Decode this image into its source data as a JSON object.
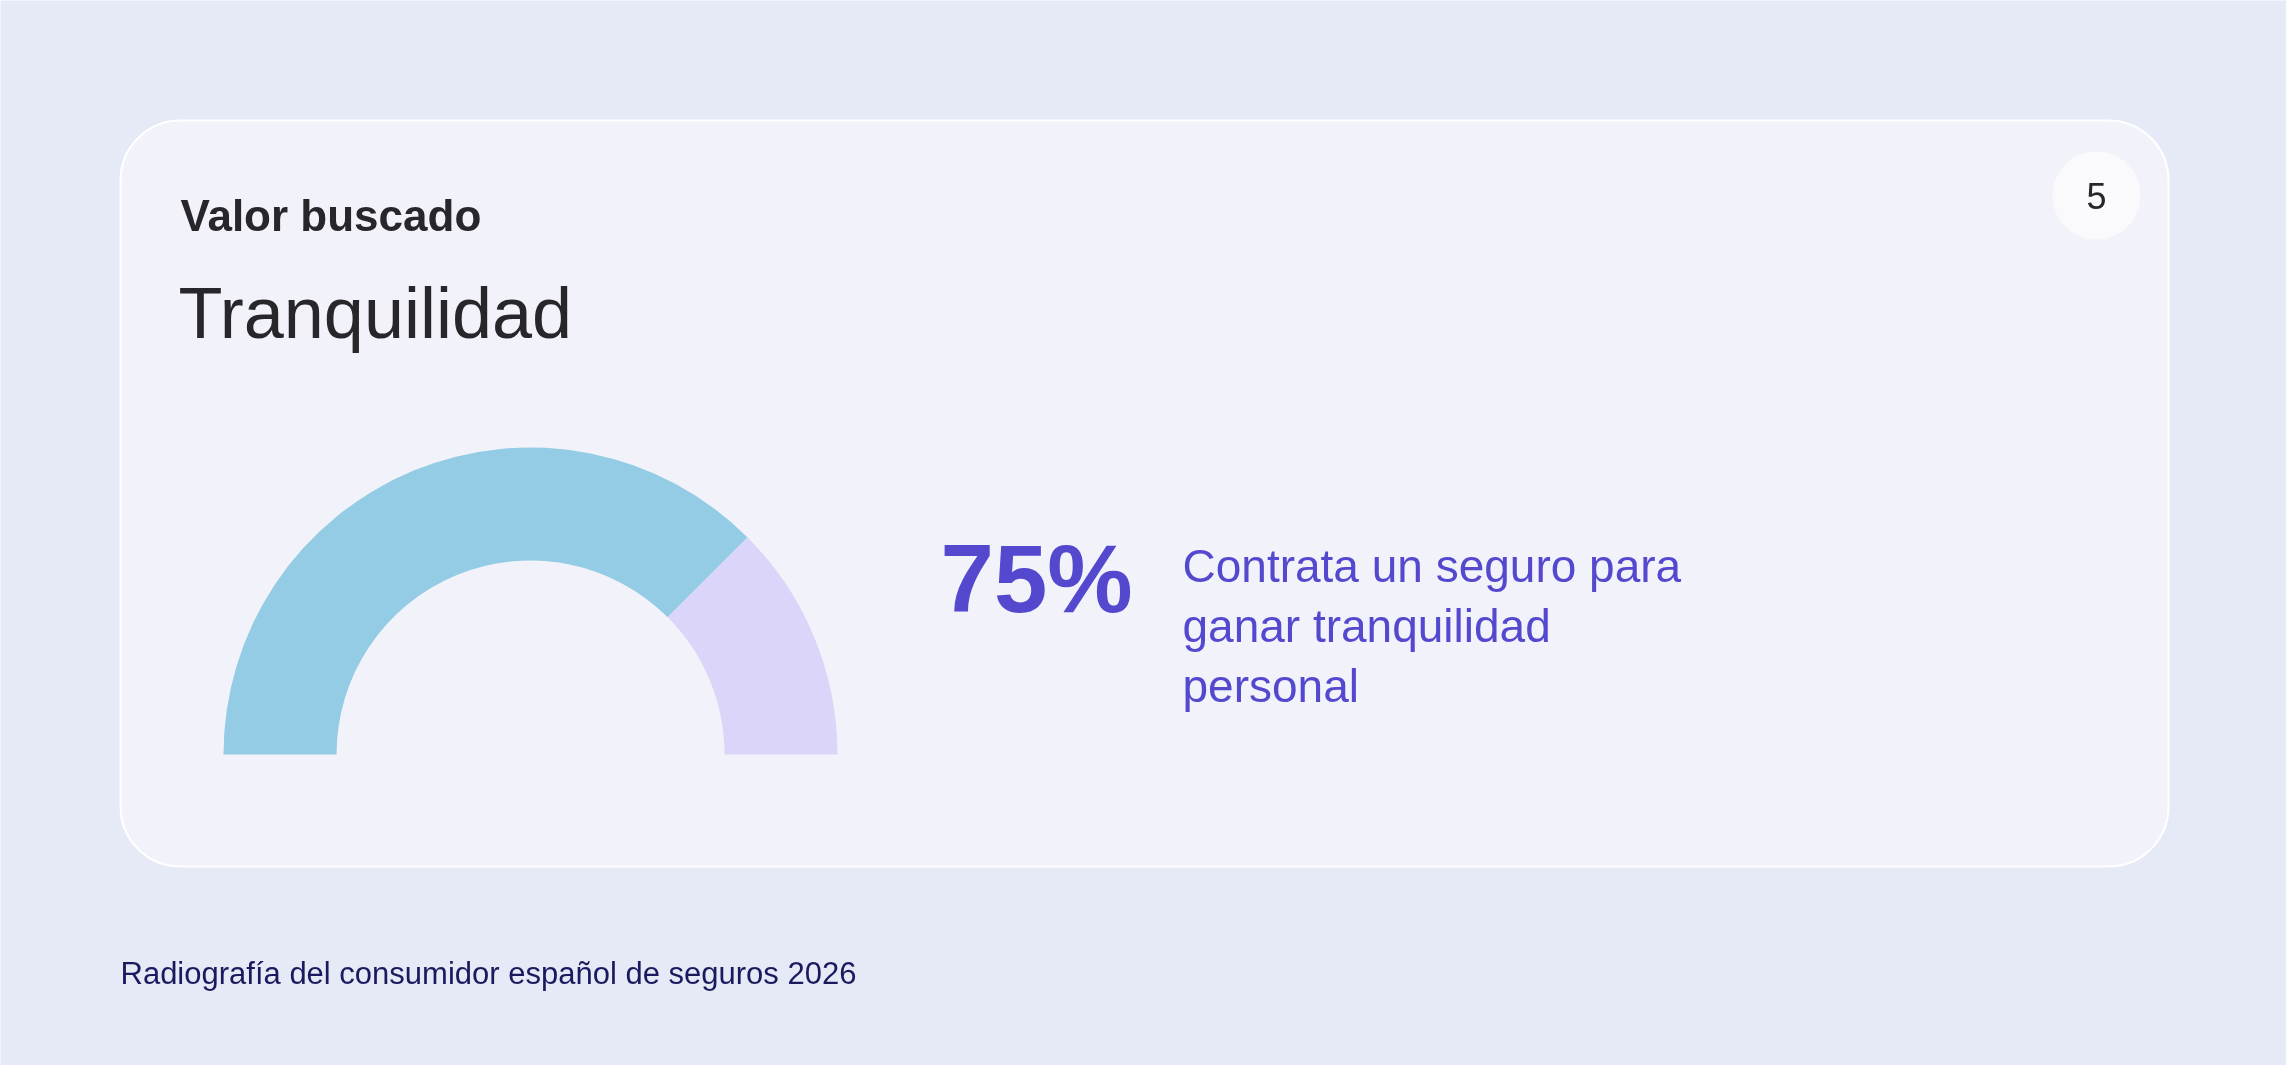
{
  "chart_data": {
    "type": "donut",
    "title": "Valor buscado",
    "subtitle": "Tranquilidad",
    "categories": [
      null,
      null
    ],
    "values": [
      75,
      25
    ],
    "colors": [
      "#93cce4",
      "#dbd5fa"
    ],
    "annotations": [
      "5",
      "75%",
      "Contrata un seguro para ganar tranquilidad personal",
      "Radiografía del consumidor español de seguros 2026"
    ]
  }
}
